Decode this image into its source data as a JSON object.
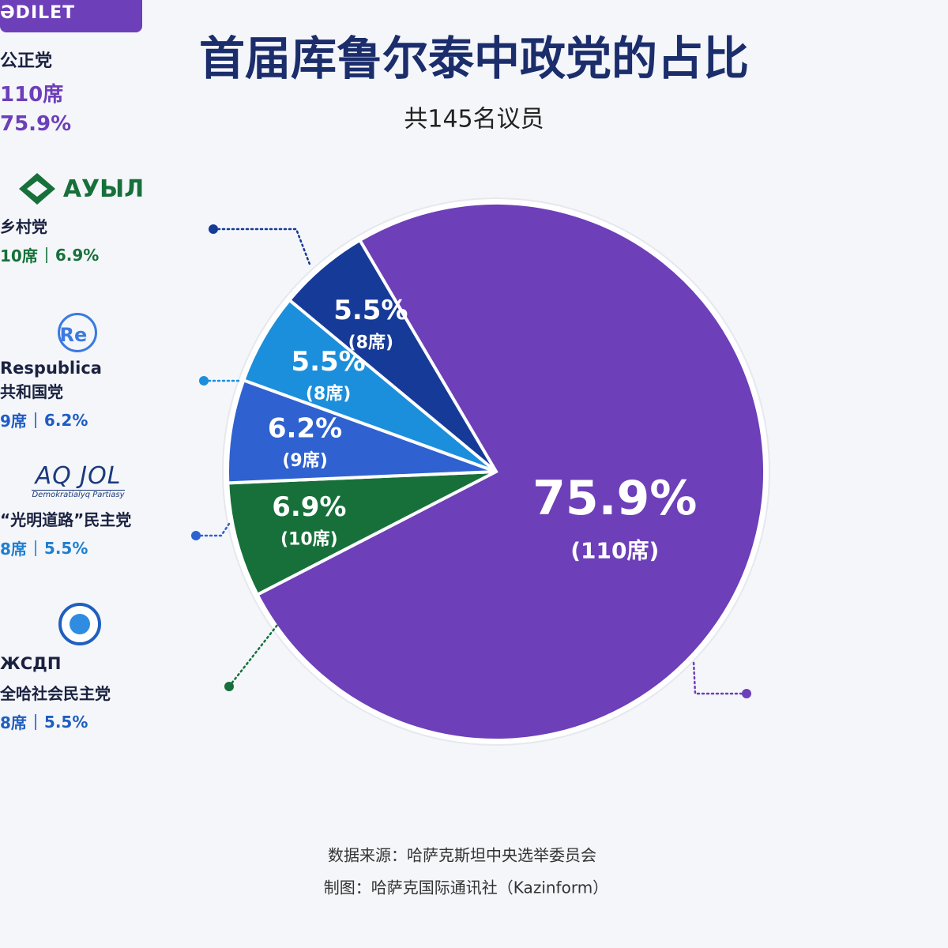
{
  "chart_data": {
    "type": "pie",
    "title": "首届库鲁尔泰中政党的占比",
    "subtitle": "共145名议员",
    "categories": [
      "公正党",
      "乡村党",
      "共和国党",
      "“光明道路”民主党",
      "全哈社会民主党"
    ],
    "values": [
      75.9,
      6.9,
      6.2,
      5.5,
      5.5
    ],
    "value_labels": [
      "75.9%",
      "6.9%",
      "6.2%",
      "5.5%",
      "5.5%"
    ],
    "seat_labels": [
      "(110席)",
      "(10席)",
      "(9席)",
      "(8席)",
      "(8席)"
    ],
    "colors": [
      "#6d3fb8",
      "#17703a",
      "#2f62d0",
      "#1b8fdc",
      "#163a98"
    ],
    "parties": [
      {
        "logo": "ƏDILET",
        "seats": "110席"
      },
      {
        "logo": "АУЫЛ",
        "seats": "10席"
      },
      {
        "logo": "Re",
        "brand": "Respublica",
        "seats": "9席"
      },
      {
        "logo": "AQ JOL",
        "tagline": "Demokratialyq Partiasy",
        "seats": "8席"
      },
      {
        "brand": "ЖСДП",
        "seats": "8席"
      }
    ],
    "source": "数据来源：哈萨克斯坦中央选举委员会",
    "credit": "制图：哈萨克国际通讯社（Kazinform）"
  }
}
